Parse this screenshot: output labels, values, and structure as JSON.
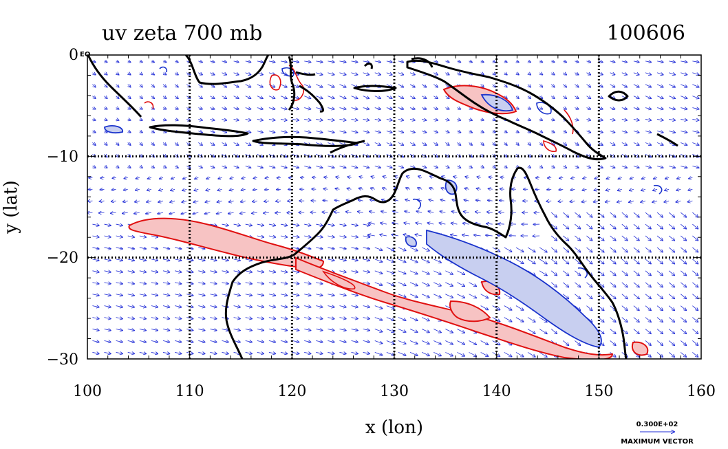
{
  "chart_data": {
    "type": "map",
    "title_left": "uv zeta 700 mb",
    "title_right": "100606",
    "xlabel": "x (lon)",
    "ylabel": "y (lat)",
    "xlim": [
      100,
      160
    ],
    "ylim": [
      -30,
      0
    ],
    "x_ticks": [
      100,
      110,
      120,
      130,
      140,
      150,
      160
    ],
    "x_tick_labels": [
      "100",
      "110",
      "120",
      "130",
      "140",
      "150",
      "160"
    ],
    "y_ticks": [
      0,
      -10,
      -20,
      -30
    ],
    "y_tick_labels": [
      "0",
      "−10",
      "−20",
      "−30"
    ],
    "corner_label": "EQ",
    "gridlines": {
      "lon": [
        110,
        120,
        130,
        140,
        150
      ],
      "lat": [
        -10,
        -20
      ]
    },
    "reference_vector": {
      "value_label": "0.300E+02",
      "caption": "MAXIMUM VECTOR"
    },
    "colors": {
      "coast": "#000000",
      "vectors": "#1f2bd6",
      "positive_vorticity": "#e01010",
      "positive_fill": "#f7c3c3",
      "negative_vorticity": "#1a33cc",
      "negative_fill": "#c8cff0"
    }
  }
}
